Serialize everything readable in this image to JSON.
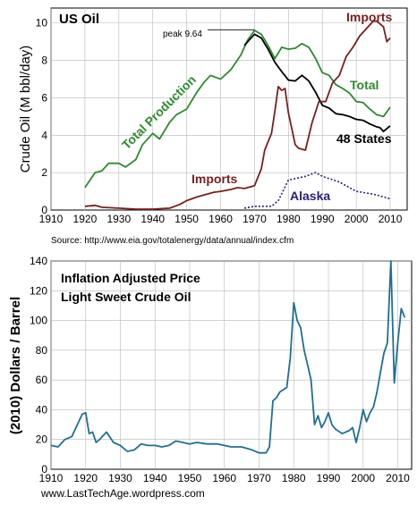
{
  "source_note": "Source:  http://www.eia.gov/totalenergy/data/annual/index.cfm",
  "footer": "www.LastTechAge.wordpress.com",
  "colors": {
    "total": "#2e8b2e",
    "states48": "#000000",
    "imports": "#7a1f1f",
    "alaska": "#2a1f7a",
    "price": "#1f6f94",
    "grid": "#b8b8b8"
  },
  "chart_data": [
    {
      "type": "line",
      "title": "US Oil",
      "xlabel": "",
      "ylabel": "Crude Oil (M bbl/day)",
      "xlim": [
        1910,
        2015
      ],
      "ylim": [
        0,
        10.8
      ],
      "xticks": [
        1910,
        1920,
        1930,
        1940,
        1950,
        1960,
        1970,
        1980,
        1990,
        2000,
        2010
      ],
      "yticks": [
        0,
        2,
        4,
        6,
        8,
        10
      ],
      "grid": true,
      "annotations": [
        "peak 9.64"
      ],
      "peak": {
        "x": 1970,
        "y": 9.64
      },
      "series": [
        {
          "name": "Total Production",
          "key": "total",
          "label_extra": "Total",
          "x": [
            1920,
            1923,
            1925,
            1927,
            1930,
            1932,
            1935,
            1937,
            1940,
            1942,
            1945,
            1947,
            1950,
            1953,
            1955,
            1957,
            1960,
            1963,
            1966,
            1968,
            1970,
            1972,
            1974,
            1976,
            1978,
            1980,
            1982,
            1984,
            1986,
            1988,
            1990,
            1992,
            1994,
            1996,
            1998,
            2000,
            2002,
            2004,
            2006,
            2008,
            2010
          ],
          "y": [
            1.2,
            2.0,
            2.1,
            2.5,
            2.5,
            2.3,
            2.7,
            3.5,
            4.1,
            3.8,
            4.7,
            5.1,
            5.4,
            6.3,
            6.8,
            7.2,
            7.0,
            7.5,
            8.3,
            9.1,
            9.6,
            9.4,
            8.8,
            8.1,
            8.7,
            8.6,
            8.65,
            8.9,
            8.7,
            8.1,
            7.35,
            7.2,
            6.7,
            6.5,
            6.25,
            5.8,
            5.75,
            5.4,
            5.1,
            5.0,
            5.5
          ]
        },
        {
          "name": "48 States",
          "key": "states48",
          "x": [
            1967,
            1968,
            1970,
            1972,
            1974,
            1976,
            1978,
            1980,
            1982,
            1984,
            1986,
            1988,
            1990,
            1992,
            1994,
            1996,
            1998,
            2000,
            2002,
            2004,
            2006,
            2007,
            2008,
            2010
          ],
          "y": [
            8.8,
            9.0,
            9.4,
            9.2,
            8.6,
            7.9,
            7.4,
            6.95,
            6.9,
            7.2,
            6.9,
            6.3,
            5.6,
            5.45,
            5.15,
            5.1,
            5.0,
            4.85,
            4.8,
            4.6,
            4.45,
            4.4,
            4.2,
            4.5
          ]
        },
        {
          "name": "Imports",
          "key": "imports",
          "x": [
            1920,
            1923,
            1925,
            1930,
            1935,
            1940,
            1945,
            1948,
            1950,
            1953,
            1955,
            1958,
            1960,
            1963,
            1965,
            1967,
            1970,
            1972,
            1973,
            1975,
            1976,
            1977,
            1978,
            1979,
            1980,
            1982,
            1983,
            1985,
            1987,
            1989,
            1991,
            1993,
            1995,
            1997,
            1999,
            2001,
            2003,
            2005,
            2006,
            2008,
            2009,
            2010
          ],
          "y": [
            0.2,
            0.25,
            0.15,
            0.1,
            0.05,
            0.05,
            0.1,
            0.3,
            0.5,
            0.7,
            0.8,
            0.95,
            1.0,
            1.1,
            1.2,
            1.15,
            1.3,
            2.2,
            3.2,
            4.1,
            5.3,
            6.6,
            6.4,
            6.5,
            5.2,
            3.5,
            3.3,
            3.2,
            4.7,
            5.8,
            5.8,
            6.8,
            7.2,
            8.2,
            8.7,
            9.3,
            9.7,
            10.1,
            10.1,
            9.8,
            9.0,
            9.2
          ]
        },
        {
          "name": "Alaska",
          "key": "alaska",
          "dashed": true,
          "x": [
            1967,
            1970,
            1975,
            1977,
            1980,
            1985,
            1988,
            1990,
            1995,
            2000,
            2005,
            2010
          ],
          "y": [
            0.1,
            0.2,
            0.2,
            0.5,
            1.6,
            1.8,
            2.0,
            1.8,
            1.5,
            1.0,
            0.85,
            0.6
          ]
        }
      ]
    },
    {
      "type": "line",
      "title": "Inflation Adjusted Price",
      "subtitle": "Light Sweet Crude Oil",
      "xlabel": "",
      "ylabel": "(2010) Dollars / Barrel",
      "xlim": [
        1910,
        2014
      ],
      "ylim": [
        0,
        140
      ],
      "xticks": [
        1910,
        1920,
        1930,
        1940,
        1950,
        1960,
        1970,
        1980,
        1990,
        2000,
        2010
      ],
      "yticks": [
        0,
        20,
        40,
        60,
        80,
        100,
        120,
        140
      ],
      "grid": true,
      "series": [
        {
          "key": "price",
          "x": [
            1910,
            1912,
            1914,
            1916,
            1918,
            1919,
            1920,
            1921,
            1922,
            1923,
            1924,
            1926,
            1928,
            1930,
            1932,
            1934,
            1936,
            1938,
            1940,
            1942,
            1944,
            1946,
            1948,
            1950,
            1952,
            1955,
            1958,
            1960,
            1962,
            1965,
            1968,
            1970,
            1972,
            1973,
            1974,
            1975,
            1976,
            1978,
            1979,
            1980,
            1981,
            1982,
            1983,
            1984,
            1985,
            1986,
            1987,
            1988,
            1989,
            1990,
            1991,
            1992,
            1994,
            1996,
            1997,
            1998,
            1999,
            2000,
            2001,
            2002,
            2003,
            2004,
            2005,
            2006,
            2007,
            2008,
            2009,
            2010,
            2011,
            2012
          ],
          "y": [
            16,
            15,
            20,
            22,
            32,
            37,
            38,
            24,
            25,
            18,
            20,
            25,
            18,
            16,
            12,
            13,
            17,
            16,
            16,
            15,
            16,
            19,
            18,
            17,
            18,
            17,
            17,
            16,
            15,
            15,
            13,
            11,
            11,
            15,
            46,
            48,
            52,
            55,
            75,
            112,
            100,
            95,
            80,
            70,
            60,
            30,
            36,
            28,
            32,
            38,
            30,
            27,
            24,
            26,
            28,
            18,
            28,
            40,
            32,
            38,
            42,
            52,
            65,
            78,
            85,
            140,
            58,
            85,
            108,
            102
          ]
        }
      ]
    }
  ]
}
